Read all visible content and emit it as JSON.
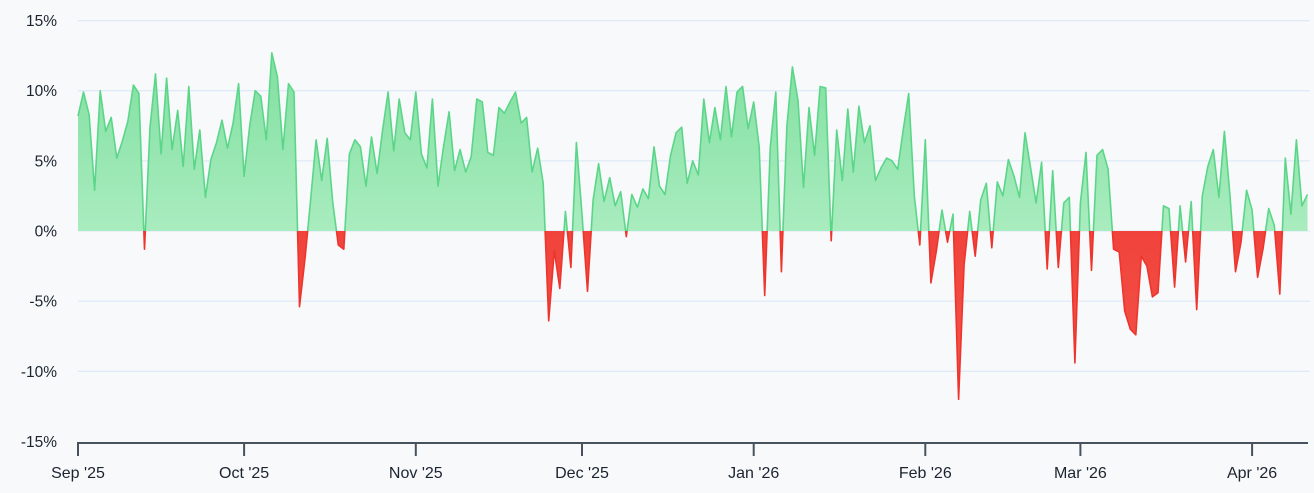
{
  "chart_data": {
    "type": "area",
    "title": "",
    "description": "Daily percentage change area chart, green above zero, red below zero",
    "ylim": [
      -15,
      15
    ],
    "grid": true,
    "legend": false,
    "y_axis": {
      "ticks": [
        {
          "label": "15%",
          "value": 15
        },
        {
          "label": "10%",
          "value": 10
        },
        {
          "label": "5%",
          "value": 5
        },
        {
          "label": "0%",
          "value": 0
        },
        {
          "label": "-5%",
          "value": -5
        },
        {
          "label": "-10%",
          "value": -10
        },
        {
          "label": "-15%",
          "value": -15
        }
      ],
      "gridline_values": [
        15,
        10,
        5,
        0,
        -5,
        -10
      ]
    },
    "x_axis": {
      "unit": "day",
      "month_ticks": [
        {
          "label": "Sep '25",
          "day": 0
        },
        {
          "label": "Oct '25",
          "day": 30
        },
        {
          "label": "Nov '25",
          "day": 61
        },
        {
          "label": "Dec '25",
          "day": 91
        },
        {
          "label": "Jan '26",
          "day": 122
        },
        {
          "label": "Feb '26",
          "day": 153
        },
        {
          "label": "Mar '26",
          "day": 181
        },
        {
          "label": "Apr '26",
          "day": 212
        }
      ]
    },
    "values": [
      8.2,
      9.9,
      8.3,
      2.9,
      10.0,
      7.1,
      8.1,
      5.2,
      6.4,
      7.8,
      10.4,
      9.8,
      -1.3,
      7.4,
      11.2,
      5.5,
      10.9,
      5.8,
      8.6,
      4.6,
      10.3,
      4.4,
      7.2,
      2.4,
      5.1,
      6.3,
      7.9,
      5.9,
      7.7,
      10.5,
      3.9,
      7.5,
      10.0,
      9.6,
      6.5,
      12.7,
      11.0,
      5.8,
      10.5,
      9.9,
      -5.4,
      -1.9,
      2.2,
      6.5,
      3.6,
      6.6,
      2.0,
      -1.0,
      -1.3,
      5.5,
      6.5,
      6.0,
      3.2,
      6.7,
      4.1,
      7.2,
      9.9,
      5.7,
      9.4,
      7.0,
      6.5,
      9.9,
      5.5,
      4.5,
      9.4,
      3.2,
      6.0,
      8.5,
      4.3,
      5.8,
      4.2,
      5.3,
      9.4,
      9.2,
      5.6,
      5.4,
      8.8,
      8.4,
      9.2,
      9.9,
      7.7,
      8.1,
      4.2,
      5.9,
      3.4,
      -6.4,
      -1.4,
      -4.1,
      1.4,
      -2.6,
      6.3,
      1.2,
      -4.3,
      2.2,
      4.8,
      2.1,
      3.8,
      1.8,
      2.8,
      -0.4,
      2.6,
      1.7,
      3.0,
      2.3,
      6.0,
      3.2,
      2.6,
      5.4,
      7.0,
      7.4,
      3.4,
      5.0,
      4.0,
      9.4,
      6.3,
      8.8,
      6.5,
      10.3,
      6.7,
      9.9,
      10.3,
      7.3,
      9.2,
      6.0,
      -4.6,
      6.0,
      9.9,
      -2.9,
      7.5,
      11.7,
      9.3,
      3.1,
      8.8,
      5.4,
      10.3,
      10.2,
      -0.7,
      7.2,
      3.6,
      8.7,
      4.2,
      8.9,
      6.3,
      7.5,
      3.6,
      4.5,
      5.2,
      5.0,
      4.4,
      7.2,
      9.8,
      2.5,
      -1.0,
      6.5,
      -3.7,
      -1.4,
      1.5,
      -0.8,
      1.2,
      -12.0,
      -2.4,
      1.4,
      -1.8,
      2.2,
      3.4,
      -1.2,
      3.5,
      2.5,
      5.1,
      3.9,
      2.4,
      7.0,
      4.5,
      2.0,
      4.9,
      -2.7,
      4.3,
      -2.6,
      2.0,
      2.4,
      -9.4,
      2.0,
      5.6,
      -2.8,
      5.4,
      5.8,
      4.4,
      -1.3,
      -1.5,
      -5.7,
      -7.0,
      -7.4,
      -1.8,
      -2.5,
      -4.7,
      -4.4,
      1.8,
      1.6,
      -4.0,
      1.8,
      -2.2,
      2.1,
      -5.6,
      2.5,
      4.6,
      5.8,
      2.4,
      7.1,
      2.6,
      -2.9,
      -0.8,
      2.9,
      1.5,
      -3.3,
      -1.2,
      1.6,
      0.4,
      -4.5,
      5.2,
      1.2,
      6.5,
      1.8,
      2.6
    ],
    "colors": {
      "positive_fill_top": "#7fdf9f",
      "positive_fill_bottom": "#a9ecbf",
      "positive_line": "#5bd689",
      "negative_fill_top": "#f0433b",
      "negative_fill_bottom": "#f3564d",
      "negative_line": "#ee352d",
      "grid": "#dfeaf6",
      "axis": "#47525e",
      "label": "#1c2430",
      "background": "#f7f9fb"
    }
  }
}
